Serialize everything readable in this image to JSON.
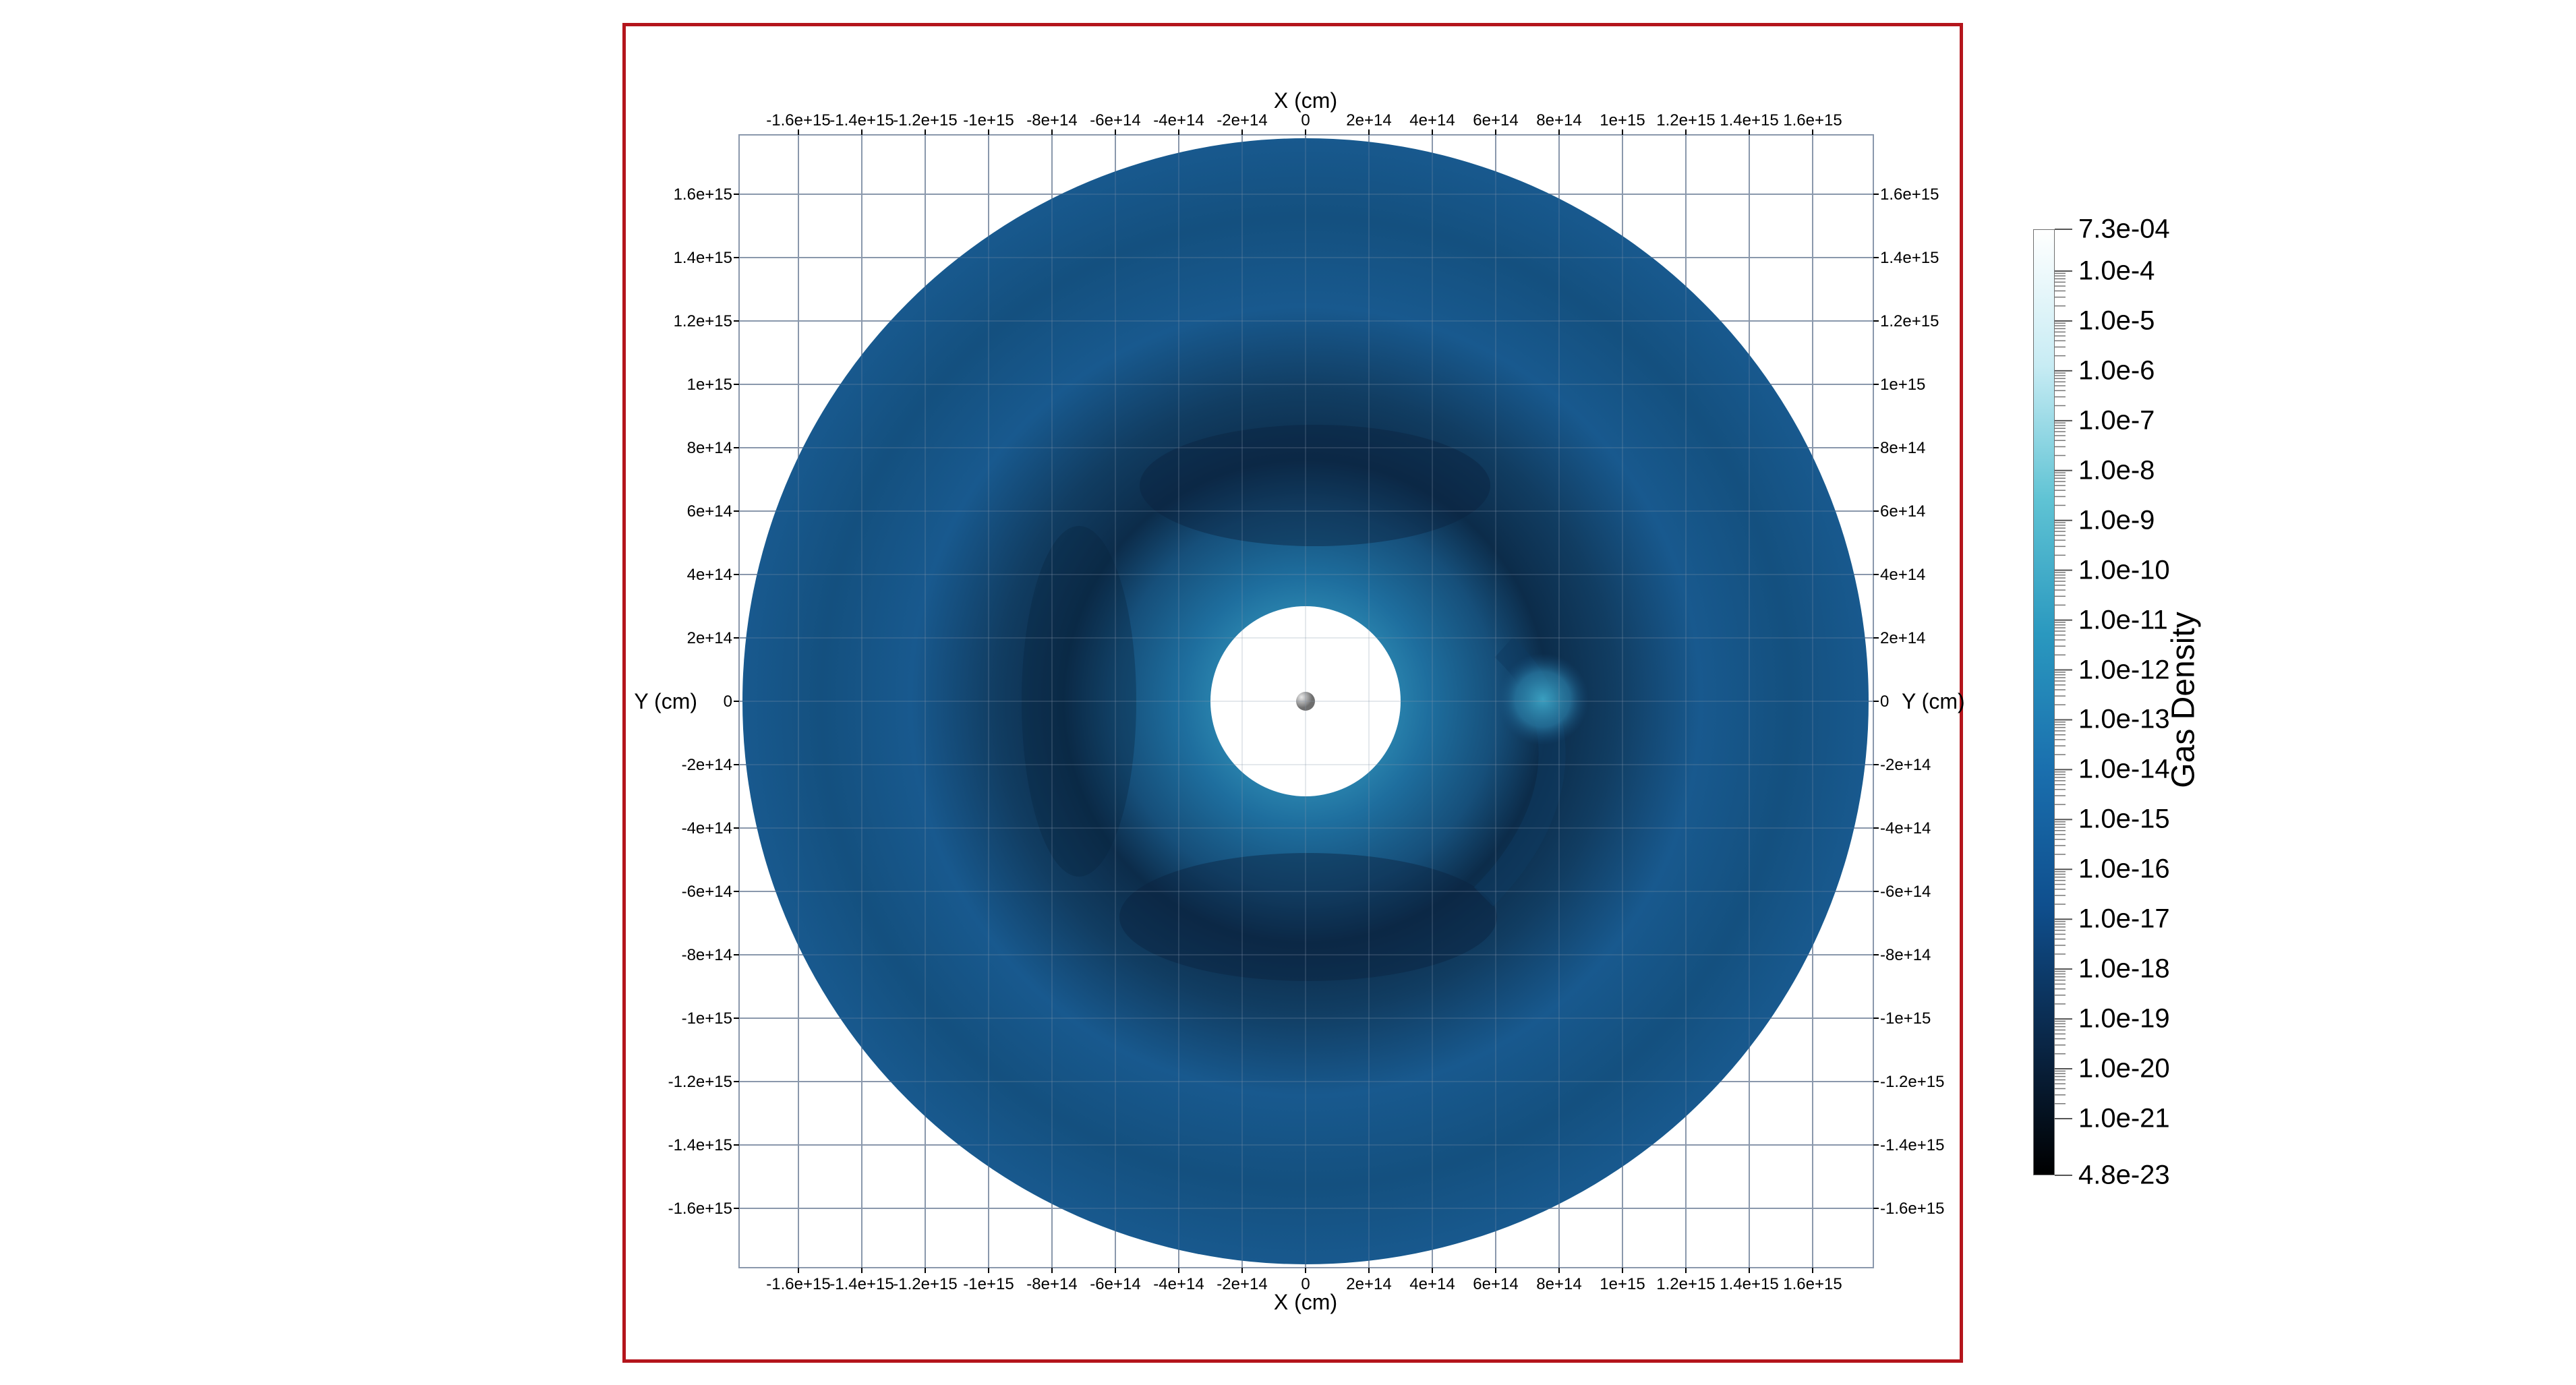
{
  "viewport": {
    "border_color": "#b4151c"
  },
  "axes": {
    "x_title": "X (cm)",
    "y_title": "Y (cm)",
    "x_ticks": [
      "-1.6e+15",
      "-1.4e+15",
      "-1.2e+15",
      "-1e+15",
      "-8e+14",
      "-6e+14",
      "-4e+14",
      "-2e+14",
      "0",
      "2e+14",
      "4e+14",
      "6e+14",
      "8e+14",
      "1e+15",
      "1.2e+15",
      "1.4e+15",
      "1.6e+15"
    ],
    "y_ticks": [
      "1.6e+15",
      "1.4e+15",
      "1.2e+15",
      "1e+15",
      "8e+14",
      "6e+14",
      "4e+14",
      "2e+14",
      "0",
      "-2e+14",
      "-4e+14",
      "-6e+14",
      "-8e+14",
      "-1e+15",
      "-1.2e+15",
      "-1.4e+15",
      "-1.6e+15"
    ],
    "grid": true,
    "grid_color": "#8a98ac"
  },
  "colorbar": {
    "title": "Gas Density",
    "range": {
      "min": "4.8e-23",
      "max": "7.3e-04"
    },
    "labels": [
      "7.3e-04",
      "1.0e-4",
      "1.0e-5",
      "1.0e-6",
      "1.0e-7",
      "1.0e-8",
      "1.0e-9",
      "1.0e-10",
      "1.0e-11",
      "1.0e-12",
      "1.0e-13",
      "1.0e-14",
      "1.0e-15",
      "1.0e-16",
      "1.0e-17",
      "1.0e-18",
      "1.0e-19",
      "1.0e-20",
      "1.0e-21",
      "4.8e-23"
    ],
    "scale": "log",
    "colors": [
      "#ffffff",
      "#c8ecf4",
      "#5fc3d4",
      "#2a98bf",
      "#1a6fae",
      "#0f4f8e",
      "#0a2748",
      "#000000"
    ]
  },
  "field": {
    "colors": {
      "outer": "#18598e",
      "mid": "#14507f",
      "dark_ring": "#0c2c4a",
      "inner_glow": "#2e8bb3",
      "blob": "#3a9fc0",
      "hole": "#ffffff",
      "sphere": "#9a9a9a"
    }
  }
}
